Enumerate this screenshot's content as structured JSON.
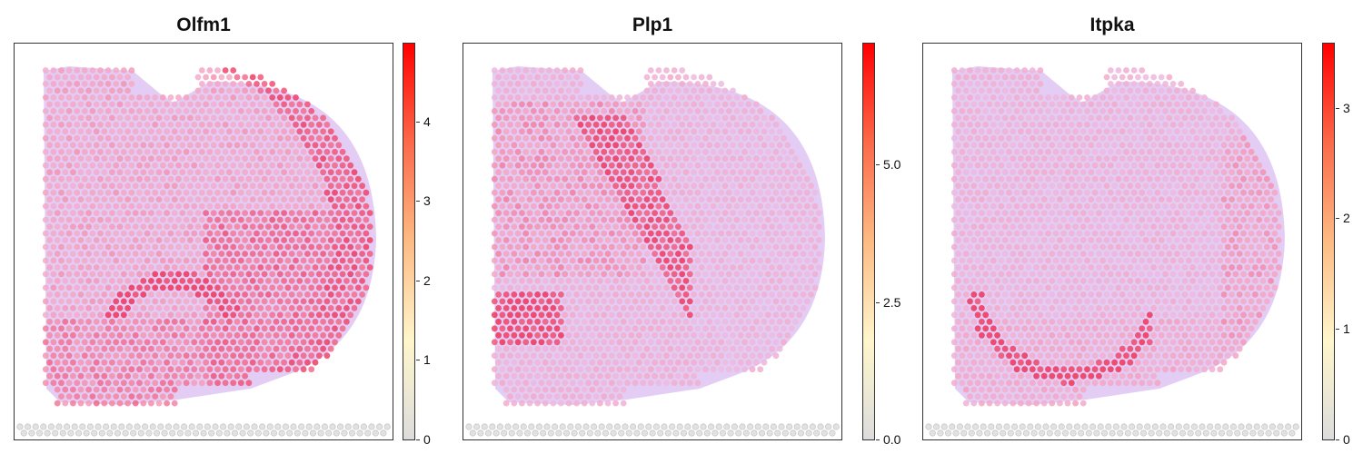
{
  "colormap": {
    "stops": [
      "#dcdcdc",
      "#fff6cc",
      "#fdbb84",
      "#fb6a4a",
      "#ff0000"
    ],
    "tissue_color": "#d9b8ee",
    "gridline_color": "#b8a6f0"
  },
  "panels": [
    {
      "title": "Olfm1",
      "colorbar": {
        "min": 0,
        "max": 4.98,
        "ticks": [
          {
            "value": 0,
            "label": "0"
          },
          {
            "value": 1,
            "label": "1"
          },
          {
            "value": 2,
            "label": "2"
          },
          {
            "value": 3,
            "label": "3"
          },
          {
            "value": 4,
            "label": "4"
          }
        ]
      }
    },
    {
      "title": "Plp1",
      "colorbar": {
        "min": 0,
        "max": 7.2,
        "ticks": [
          {
            "value": 0,
            "label": "0.0"
          },
          {
            "value": 2.5,
            "label": "2.5"
          },
          {
            "value": 5,
            "label": "5.0"
          }
        ]
      }
    },
    {
      "title": "Itpka",
      "colorbar": {
        "min": 0,
        "max": 3.58,
        "ticks": [
          {
            "value": 0,
            "label": "0"
          },
          {
            "value": 1,
            "label": "1"
          },
          {
            "value": 2,
            "label": "2"
          },
          {
            "value": 3,
            "label": "3"
          }
        ]
      }
    }
  ],
  "chart_data": [
    {
      "type": "heatmap",
      "title": "Olfm1",
      "colorbar_range": [
        0,
        4.98
      ],
      "colorbar_ticks": [
        0,
        1,
        2,
        3,
        4
      ],
      "pattern": "high in cortex band (right arc) and hippocampal CA region; moderate elsewhere"
    },
    {
      "type": "heatmap",
      "title": "Plp1",
      "colorbar_range": [
        0,
        7.2
      ],
      "colorbar_ticks": [
        0.0,
        2.5,
        5.0
      ],
      "pattern": "high in white-matter tract (central diagonal band) and lower-left region; low in cortex"
    },
    {
      "type": "heatmap",
      "title": "Itpka",
      "colorbar_range": [
        0,
        3.58
      ],
      "colorbar_ticks": [
        0,
        1,
        2,
        3
      ],
      "pattern": "high along hippocampal CA1 arc; low-moderate elsewhere"
    }
  ]
}
